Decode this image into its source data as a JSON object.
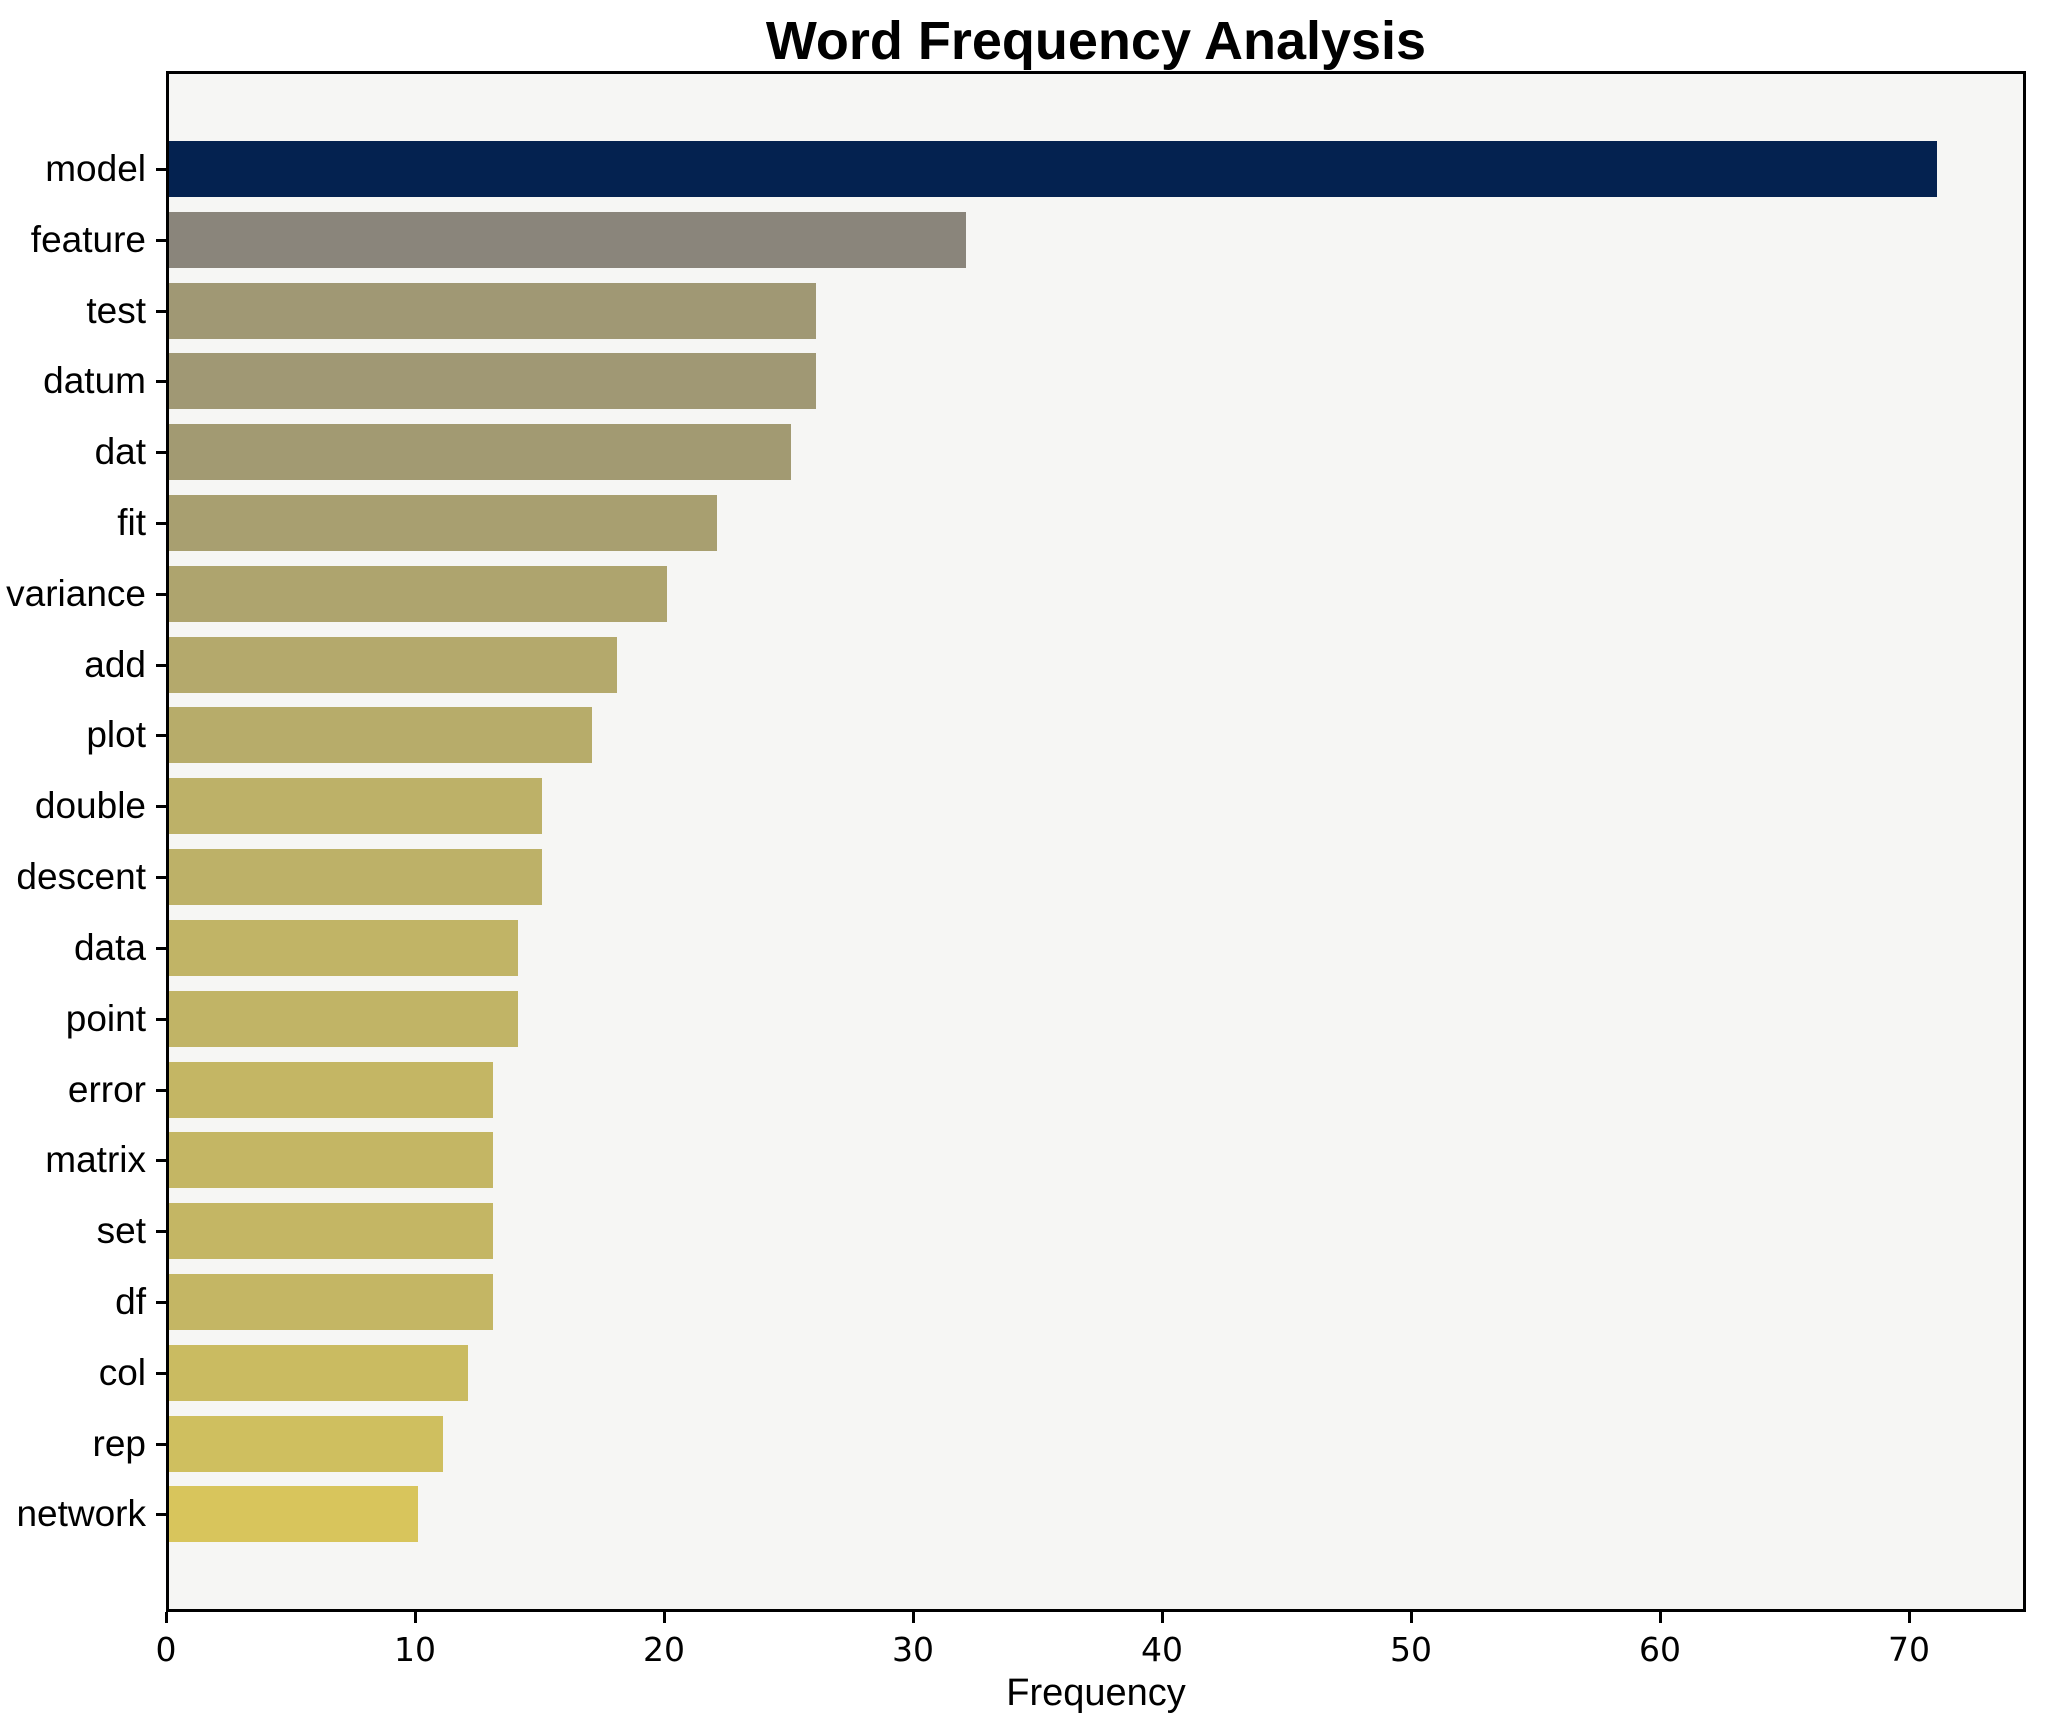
{
  "title": "Word Frequency Analysis",
  "chart_data": {
    "type": "bar",
    "orientation": "horizontal",
    "title": "Word Frequency Analysis",
    "xlabel": "Frequency",
    "ylabel": "",
    "categories": [
      "model",
      "feature",
      "test",
      "datum",
      "dat",
      "fit",
      "variance",
      "add",
      "plot",
      "double",
      "descent",
      "data",
      "point",
      "error",
      "matrix",
      "set",
      "df",
      "col",
      "rep",
      "network"
    ],
    "values": [
      71,
      32,
      26,
      26,
      25,
      22,
      20,
      18,
      17,
      15,
      15,
      14,
      14,
      13,
      13,
      13,
      13,
      12,
      11,
      10
    ],
    "bar_colors": [
      "#042250",
      "#8a857b",
      "#a09874",
      "#a09874",
      "#a29a72",
      "#a89f70",
      "#aea46e",
      "#b4a96c",
      "#b7ac6a",
      "#bdb168",
      "#bdb168",
      "#c1b466",
      "#c1b466",
      "#c4b664",
      "#c4b664",
      "#c4b664",
      "#c4b664",
      "#cabb61",
      "#cfbf5f",
      "#d8c55c"
    ],
    "xticks": [
      0,
      10,
      20,
      30,
      40,
      50,
      60,
      70
    ],
    "xlim": [
      0,
      74.7
    ],
    "grid": false,
    "legend": "none",
    "plot_background": "#f6f6f4",
    "figure_background": "#ffffff",
    "bar_height_fraction": 0.8
  }
}
